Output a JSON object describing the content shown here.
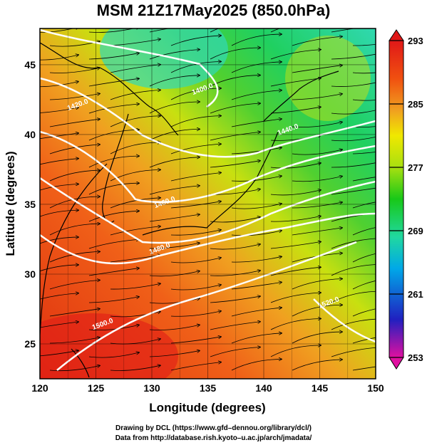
{
  "title": "MSM 21Z17May2025 (850.0hPa)",
  "x_axis": {
    "label": "Longitude (degrees)",
    "ticks": [
      "120",
      "125",
      "130",
      "135",
      "140",
      "145",
      "150"
    ],
    "range": [
      120,
      150
    ]
  },
  "y_axis": {
    "label": "Latitude  (degrees)",
    "ticks": [
      "25",
      "30",
      "35",
      "40",
      "45"
    ],
    "range": [
      22.5,
      47.6
    ]
  },
  "colorbar": {
    "labels": [
      "293",
      "285",
      "277",
      "269",
      "261",
      "253"
    ],
    "range": [
      253,
      293
    ],
    "colors": [
      "#e0109f",
      "#2020c0",
      "#00a8e8",
      "#20d8a0",
      "#18c818",
      "#a8e010",
      "#f0e800",
      "#f0a020",
      "#f05010",
      "#e01818"
    ]
  },
  "contours": {
    "unit_labels": [
      "1400.0",
      "1420.0",
      "1440.0",
      "1460.0",
      "1480.0",
      "1500.0",
      "1520.0"
    ]
  },
  "footer": {
    "line1": "Drawing by DCL (https://www.gfd–dennou.org/library/dcl/)",
    "line2": "Data from http://database.rish.kyoto–u.ac.jp/arch/jmadata/"
  }
}
